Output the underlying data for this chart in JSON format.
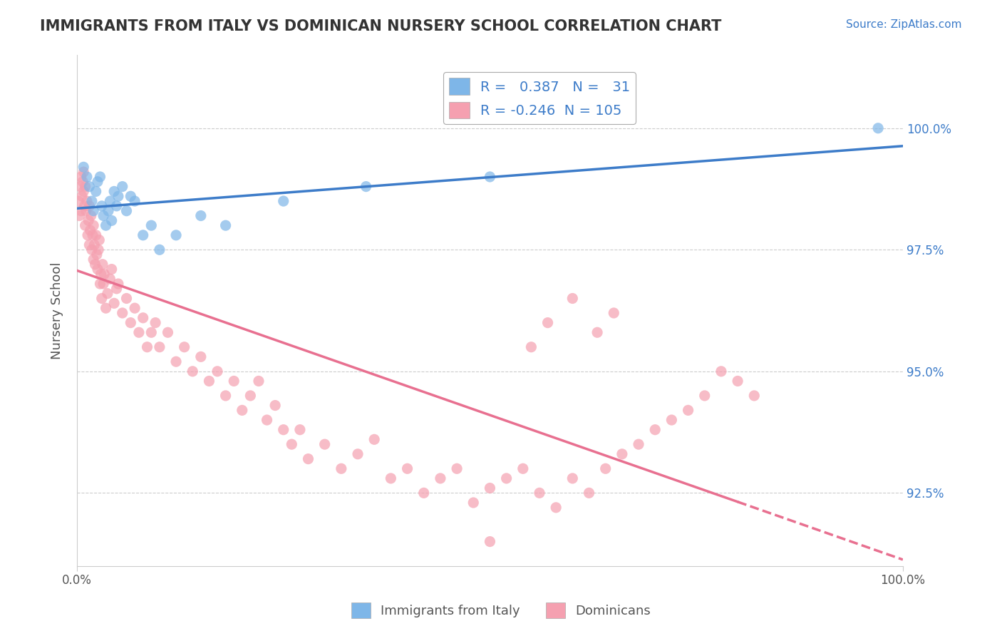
{
  "title": "IMMIGRANTS FROM ITALY VS DOMINICAN NURSERY SCHOOL CORRELATION CHART",
  "source_text": "Source: ZipAtlas.com",
  "xlabel": "",
  "ylabel": "Nursery School",
  "xlim": [
    0,
    100
  ],
  "ylim": [
    91.0,
    101.5
  ],
  "ytick_positions": [
    92.5,
    95.0,
    97.5,
    100.0
  ],
  "ytick_labels": [
    "92.5%",
    "95.0%",
    "97.5%",
    "100.0%"
  ],
  "xtick_positions": [
    0,
    100
  ],
  "xtick_labels": [
    "0.0%",
    "100.0%"
  ],
  "legend_italy_label": "Immigrants from Italy",
  "legend_dominican_label": "Dominicans",
  "italy_R": 0.387,
  "italy_N": 31,
  "dominican_R": -0.246,
  "dominican_N": 105,
  "italy_color": "#7EB6E8",
  "dominican_color": "#F5A0B0",
  "italy_line_color": "#3D7CC9",
  "dominican_line_color": "#E87090",
  "background_color": "#FFFFFF",
  "grid_color": "#CCCCCC",
  "title_color": "#333333",
  "source_color": "#3D7CC9",
  "italy_scatter_x": [
    0.8,
    1.2,
    1.5,
    1.8,
    2.0,
    2.3,
    2.5,
    2.8,
    3.0,
    3.2,
    3.5,
    3.8,
    4.0,
    4.2,
    4.5,
    4.8,
    5.0,
    5.5,
    6.0,
    6.5,
    7.0,
    8.0,
    9.0,
    10.0,
    12.0,
    15.0,
    18.0,
    25.0,
    35.0,
    50.0,
    97.0
  ],
  "italy_scatter_y": [
    99.2,
    99.0,
    98.8,
    98.5,
    98.3,
    98.7,
    98.9,
    99.0,
    98.4,
    98.2,
    98.0,
    98.3,
    98.5,
    98.1,
    98.7,
    98.4,
    98.6,
    98.8,
    98.3,
    98.6,
    98.5,
    97.8,
    98.0,
    97.5,
    97.8,
    98.2,
    98.0,
    98.5,
    98.8,
    99.0,
    100.0
  ],
  "dominican_scatter_x": [
    0.2,
    0.3,
    0.4,
    0.5,
    0.5,
    0.6,
    0.7,
    0.8,
    0.8,
    0.9,
    1.0,
    1.0,
    1.1,
    1.2,
    1.3,
    1.4,
    1.5,
    1.5,
    1.6,
    1.7,
    1.8,
    1.9,
    2.0,
    2.0,
    2.1,
    2.2,
    2.3,
    2.4,
    2.5,
    2.6,
    2.7,
    2.8,
    2.9,
    3.0,
    3.1,
    3.2,
    3.3,
    3.5,
    3.7,
    4.0,
    4.2,
    4.5,
    4.8,
    5.0,
    5.5,
    6.0,
    6.5,
    7.0,
    7.5,
    8.0,
    8.5,
    9.0,
    9.5,
    10.0,
    11.0,
    12.0,
    13.0,
    14.0,
    15.0,
    16.0,
    17.0,
    18.0,
    19.0,
    20.0,
    21.0,
    22.0,
    23.0,
    24.0,
    25.0,
    26.0,
    27.0,
    28.0,
    30.0,
    32.0,
    34.0,
    36.0,
    38.0,
    40.0,
    42.0,
    44.0,
    46.0,
    48.0,
    50.0,
    52.0,
    54.0,
    56.0,
    58.0,
    60.0,
    62.0,
    64.0,
    66.0,
    68.0,
    70.0,
    72.0,
    74.0,
    76.0,
    78.0,
    80.0,
    82.0,
    50.0,
    55.0,
    57.0,
    60.0,
    63.0,
    65.0
  ],
  "dominican_scatter_y": [
    98.5,
    98.2,
    98.8,
    99.0,
    98.3,
    98.6,
    98.9,
    98.7,
    99.1,
    98.4,
    98.0,
    98.8,
    98.3,
    98.5,
    97.8,
    98.1,
    98.4,
    97.6,
    97.9,
    98.2,
    97.5,
    97.8,
    98.0,
    97.3,
    97.6,
    97.2,
    97.8,
    97.4,
    97.1,
    97.5,
    97.7,
    96.8,
    97.0,
    96.5,
    97.2,
    96.8,
    97.0,
    96.3,
    96.6,
    96.9,
    97.1,
    96.4,
    96.7,
    96.8,
    96.2,
    96.5,
    96.0,
    96.3,
    95.8,
    96.1,
    95.5,
    95.8,
    96.0,
    95.5,
    95.8,
    95.2,
    95.5,
    95.0,
    95.3,
    94.8,
    95.0,
    94.5,
    94.8,
    94.2,
    94.5,
    94.8,
    94.0,
    94.3,
    93.8,
    93.5,
    93.8,
    93.2,
    93.5,
    93.0,
    93.3,
    93.6,
    92.8,
    93.0,
    92.5,
    92.8,
    93.0,
    92.3,
    92.6,
    92.8,
    93.0,
    92.5,
    92.2,
    92.8,
    92.5,
    93.0,
    93.3,
    93.5,
    93.8,
    94.0,
    94.2,
    94.5,
    95.0,
    94.8,
    94.5,
    91.5,
    95.5,
    96.0,
    96.5,
    95.8,
    96.2
  ]
}
